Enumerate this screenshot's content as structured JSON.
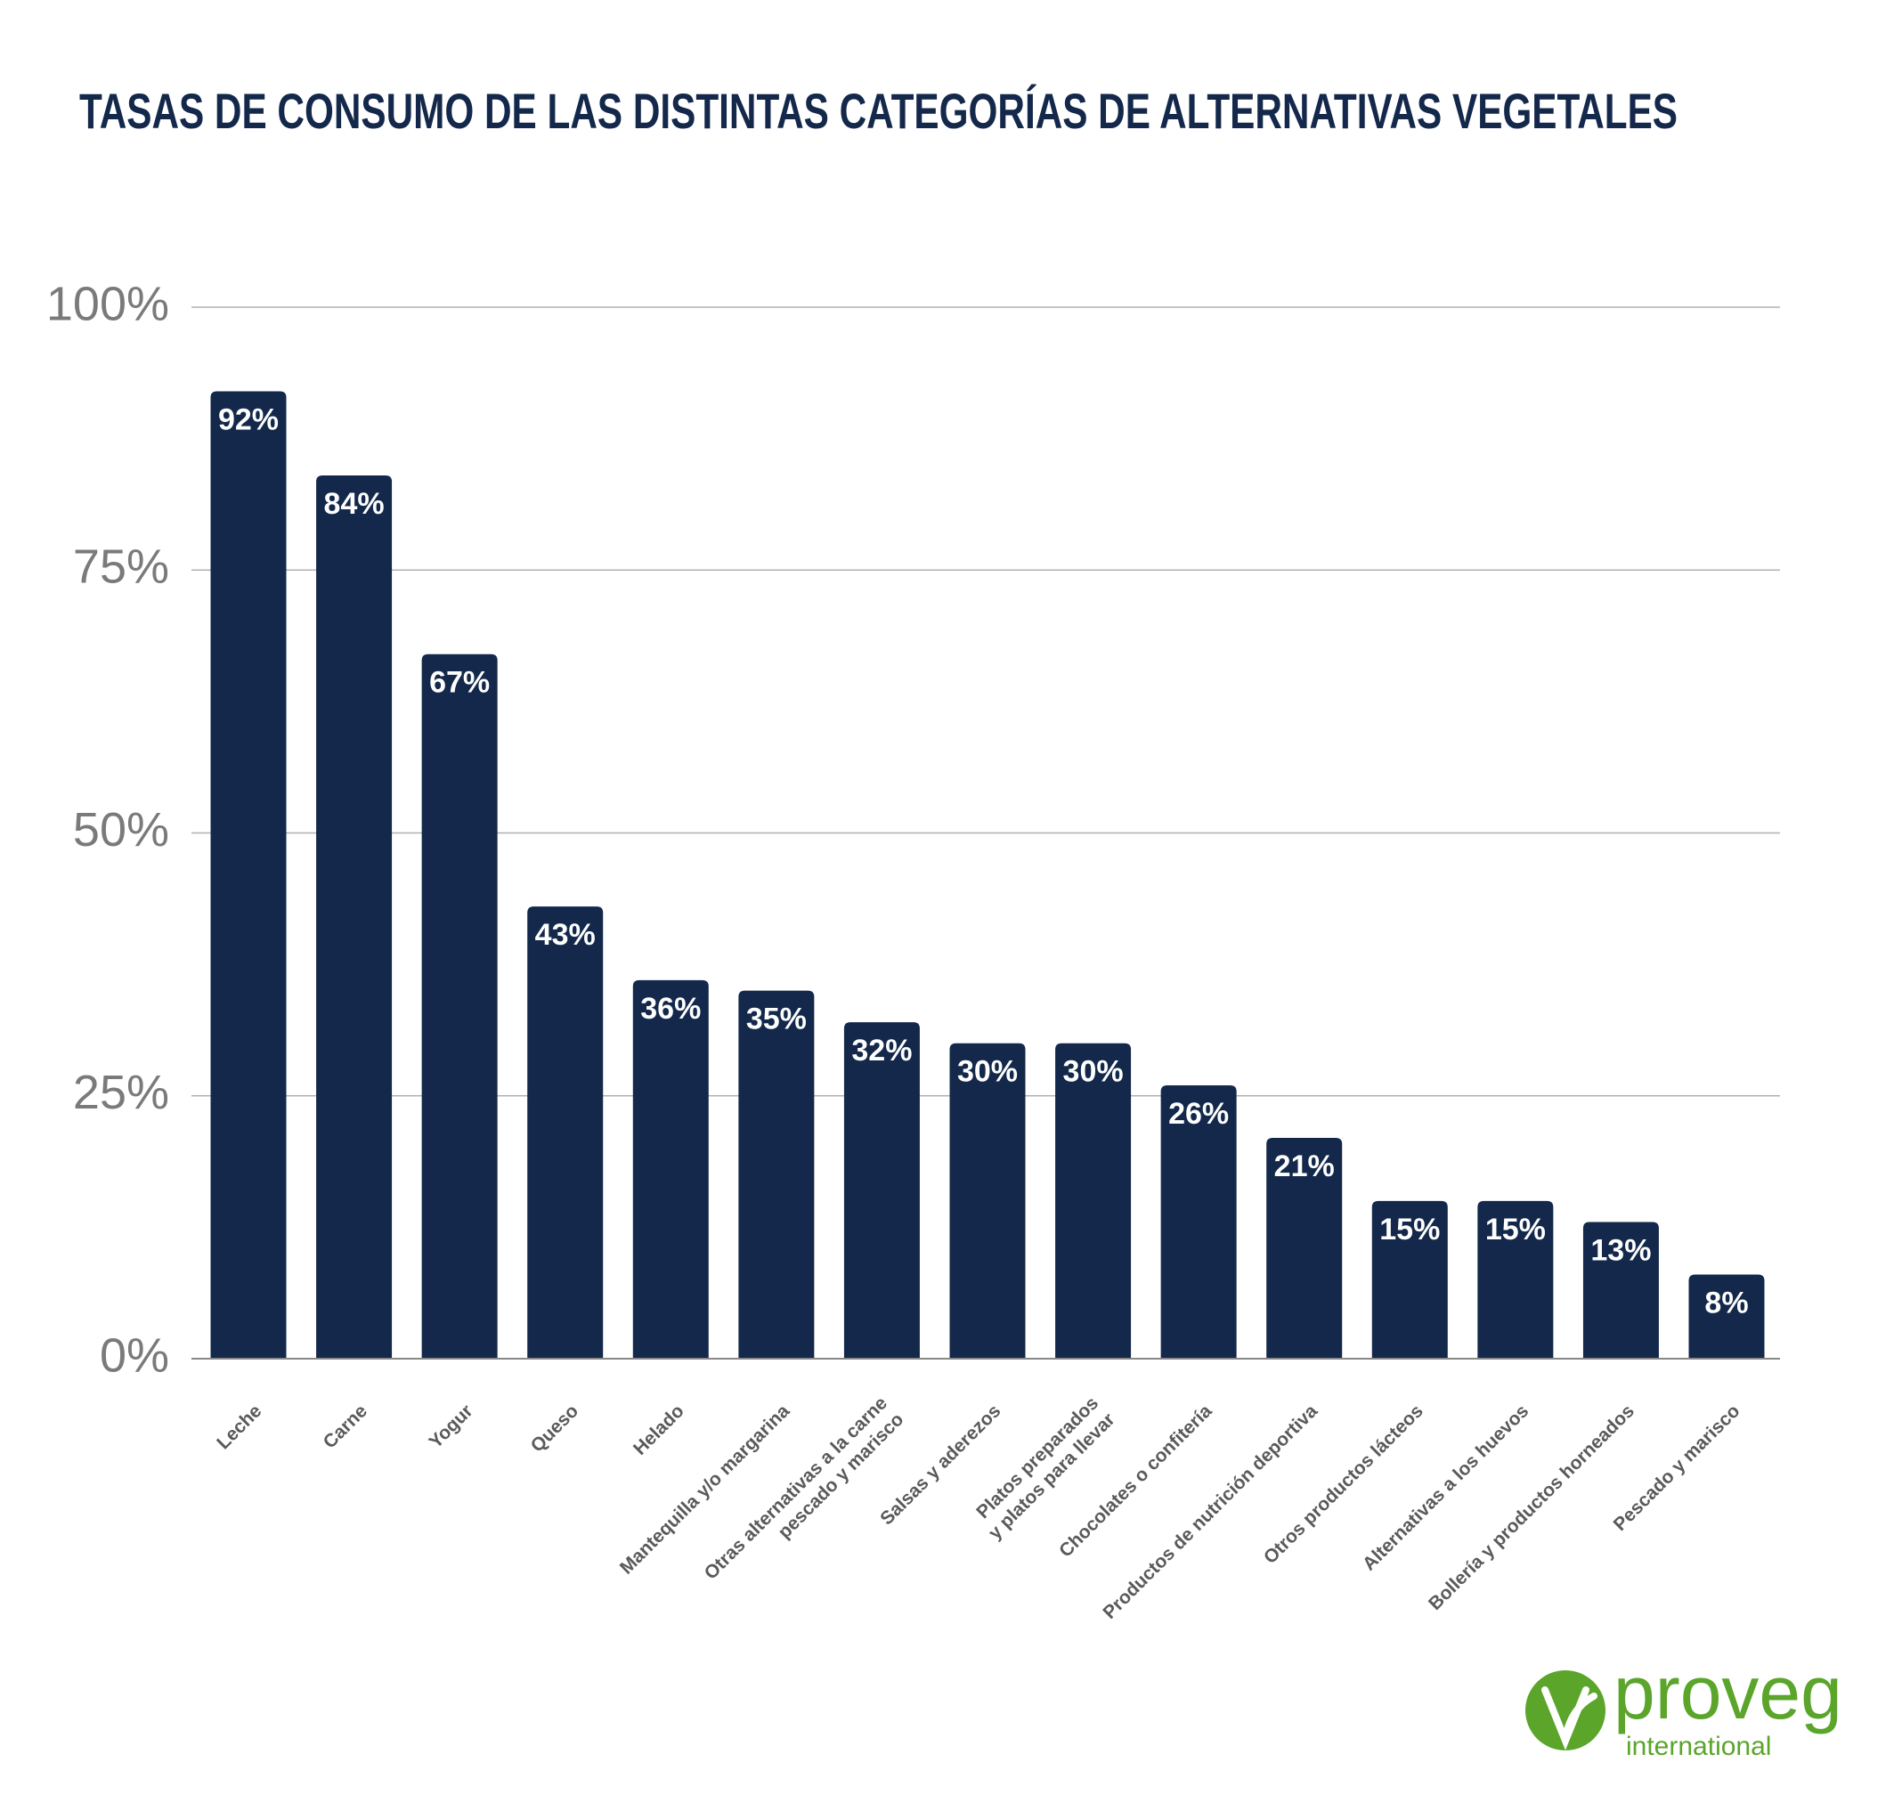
{
  "chart_data": {
    "type": "bar",
    "title": "TASAS DE CONSUMO DE LAS DISTINTAS CATEGORÍAS DE ALTERNATIVAS VEGETALES",
    "categories": [
      "Leche",
      "Carne",
      "Yogur",
      "Queso",
      "Helado",
      "Mantequilla y/o margarina",
      "Otras alternativas a la carne\npescado y marisco",
      "Salsas y aderezos",
      "Platos preparados\ny platos para llevar",
      "Chocolates o confitería",
      "Productos de nutrición deportiva",
      "Otros productos lácteos",
      "Alternativas a los huevos",
      "Bollería y productos horneados",
      "Pescado y marisco"
    ],
    "values": [
      92,
      84,
      67,
      43,
      36,
      35,
      32,
      30,
      30,
      26,
      21,
      15,
      15,
      13,
      8
    ],
    "value_labels": [
      "92%",
      "84%",
      "67%",
      "43%",
      "36%",
      "35%",
      "32%",
      "30%",
      "30%",
      "26%",
      "21%",
      "15%",
      "15%",
      "13%",
      "8%"
    ],
    "color": "#13284a",
    "ylim": [
      0,
      100
    ],
    "yticks": [
      {
        "value": 0,
        "label": "0%"
      },
      {
        "value": 25,
        "label": "25%"
      },
      {
        "value": 50,
        "label": "50%"
      },
      {
        "value": 75,
        "label": "75%"
      },
      {
        "value": 100,
        "label": "100%"
      }
    ],
    "grid": true
  },
  "logo": {
    "name": "proveg",
    "subtitle": "international"
  }
}
